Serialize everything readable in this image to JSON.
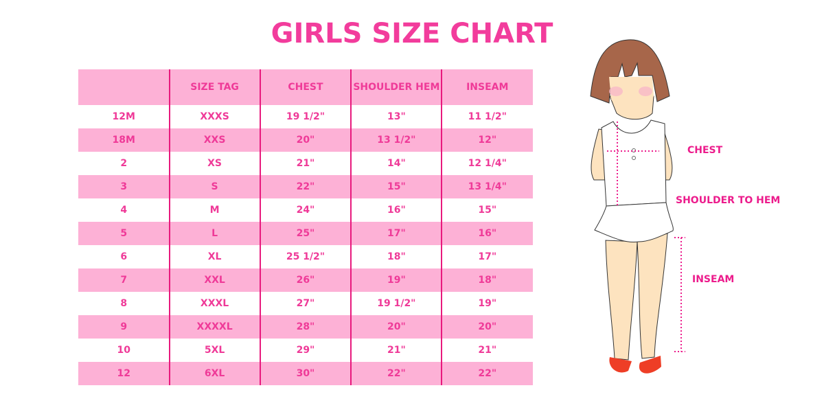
{
  "title": "GIRLS SIZE CHART",
  "colors": {
    "accent": "#f23c9c",
    "row_pink": "#fdb1d6",
    "divider": "#e8197d"
  },
  "table": {
    "headers": [
      "",
      "SIZE TAG",
      "CHEST",
      "SHOULDER HEM",
      "INSEAM"
    ],
    "rows": [
      [
        "12M",
        "XXXS",
        "19 1/2\"",
        "13\"",
        "11 1/2\""
      ],
      [
        "18M",
        "XXS",
        "20\"",
        "13 1/2\"",
        "12\""
      ],
      [
        "2",
        "XS",
        "21\"",
        "14\"",
        "12 1/4\""
      ],
      [
        "3",
        "S",
        "22\"",
        "15\"",
        "13 1/4\""
      ],
      [
        "4",
        "M",
        "24\"",
        "16\"",
        "15\""
      ],
      [
        "5",
        "L",
        "25\"",
        "17\"",
        "16\""
      ],
      [
        "6",
        "XL",
        "25 1/2\"",
        "18\"",
        "17\""
      ],
      [
        "7",
        "XXL",
        "26\"",
        "19\"",
        "18\""
      ],
      [
        "8",
        "XXXL",
        "27\"",
        "19 1/2\"",
        "19\""
      ],
      [
        "9",
        "XXXXL",
        "28\"",
        "20\"",
        "20\""
      ],
      [
        "10",
        "5XL",
        "29\"",
        "21\"",
        "21\""
      ],
      [
        "12",
        "6XL",
        "30\"",
        "22\"",
        "22\""
      ]
    ]
  },
  "figure": {
    "labels": {
      "chest": "CHEST",
      "shoulder": "SHOULDER TO HEM",
      "inseam": "INSEAM"
    }
  }
}
